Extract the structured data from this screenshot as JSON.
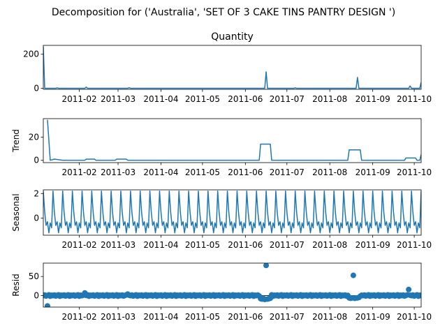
{
  "figure_title": "Decomposition for ('Australia', 'SET OF 3 CAKE TINS PANTRY DESIGN ')",
  "colors": {
    "line": "#1f77b4",
    "axis": "#000000",
    "background": "#ffffff"
  },
  "chart_data": [
    {
      "type": "line",
      "title": "Quantity",
      "ylabel": "",
      "ylim": [
        -6,
        252
      ],
      "yticks": [
        0,
        200
      ],
      "xlim": [
        0,
        273
      ],
      "xticks": [
        {
          "x": 26,
          "label": "2011-02"
        },
        {
          "x": 54,
          "label": "2011-03"
        },
        {
          "x": 85,
          "label": "2011-04"
        },
        {
          "x": 115,
          "label": "2011-05"
        },
        {
          "x": 146,
          "label": "2011-06"
        },
        {
          "x": 176,
          "label": "2011-07"
        },
        {
          "x": 207,
          "label": "2011-08"
        },
        {
          "x": 238,
          "label": "2011-09"
        },
        {
          "x": 268,
          "label": "2011-10"
        }
      ],
      "series": [
        {
          "name": "Quantity",
          "x": [
            0,
            1,
            2,
            9,
            10,
            11,
            30,
            31,
            32,
            61,
            62,
            63,
            160,
            161,
            162,
            181,
            182,
            183,
            226,
            227,
            228,
            264,
            265,
            266,
            271,
            272,
            273
          ],
          "values": [
            245,
            0,
            0,
            0,
            3,
            0,
            0,
            7,
            0,
            0,
            4,
            0,
            0,
            97,
            0,
            0,
            3,
            0,
            0,
            64,
            0,
            0,
            14,
            0,
            0,
            0,
            35
          ]
        }
      ]
    },
    {
      "type": "line",
      "title": "",
      "ylabel": "Trend",
      "ylim": [
        -2,
        36
      ],
      "yticks": [
        0,
        20
      ],
      "xlim": [
        0,
        273
      ],
      "xticks": [
        {
          "x": 26,
          "label": "2011-02"
        },
        {
          "x": 54,
          "label": "2011-03"
        },
        {
          "x": 85,
          "label": "2011-04"
        },
        {
          "x": 115,
          "label": "2011-05"
        },
        {
          "x": 146,
          "label": "2011-06"
        },
        {
          "x": 176,
          "label": "2011-07"
        },
        {
          "x": 207,
          "label": "2011-08"
        },
        {
          "x": 238,
          "label": "2011-09"
        },
        {
          "x": 268,
          "label": "2011-10"
        }
      ],
      "series": [
        {
          "name": "Trend",
          "x": [
            3,
            5,
            8,
            14,
            30,
            31,
            37,
            38,
            52,
            53,
            60,
            61,
            156,
            157,
            164,
            165,
            220,
            221,
            229,
            230,
            261,
            262,
            269,
            270,
            272,
            273
          ],
          "values": [
            35,
            0,
            1,
            0,
            0,
            1,
            1,
            0,
            0,
            1,
            1,
            0,
            0,
            14,
            14,
            0,
            0,
            9,
            9,
            0,
            0,
            2,
            2,
            0,
            0,
            5
          ]
        }
      ]
    },
    {
      "type": "line",
      "title": "",
      "ylabel": "Seasonal",
      "ylim": [
        -1.4,
        2.3
      ],
      "yticks": [
        0,
        2
      ],
      "xlim": [
        0,
        273
      ],
      "xticks": [
        {
          "x": 26,
          "label": "2011-02"
        },
        {
          "x": 54,
          "label": "2011-03"
        },
        {
          "x": 85,
          "label": "2011-04"
        },
        {
          "x": 115,
          "label": "2011-05"
        },
        {
          "x": 146,
          "label": "2011-06"
        },
        {
          "x": 176,
          "label": "2011-07"
        },
        {
          "x": 207,
          "label": "2011-08"
        },
        {
          "x": 238,
          "label": "2011-09"
        },
        {
          "x": 268,
          "label": "2011-10"
        }
      ],
      "seasonal_period": 7,
      "series": [
        {
          "name": "Seasonal",
          "pattern": [
            2.2,
            0.5,
            -0.6,
            -0.3,
            -1.2,
            -0.4,
            -0.8
          ]
        }
      ]
    },
    {
      "type": "scatter",
      "title": "",
      "ylabel": "Resid",
      "ylim": [
        -30,
        85
      ],
      "yticks": [
        0,
        50
      ],
      "xlim": [
        0,
        273
      ],
      "zero_line": true,
      "xticks": [
        {
          "x": 26,
          "label": "2011-02"
        },
        {
          "x": 54,
          "label": "2011-03"
        },
        {
          "x": 85,
          "label": "2011-04"
        },
        {
          "x": 115,
          "label": "2011-05"
        },
        {
          "x": 146,
          "label": "2011-06"
        },
        {
          "x": 176,
          "label": "2011-07"
        },
        {
          "x": 207,
          "label": "2011-08"
        },
        {
          "x": 238,
          "label": "2011-09"
        },
        {
          "x": 268,
          "label": "2011-10"
        }
      ],
      "series": [
        {
          "name": "Resid",
          "baseline_values": [
            0,
            1.5,
            -1,
            0.5,
            2,
            -1.5,
            1
          ],
          "outliers": [
            {
              "x": 3,
              "value": -27
            },
            {
              "x": 30,
              "value": 7
            },
            {
              "x": 61,
              "value": 4
            },
            {
              "x": 157,
              "value": -8
            },
            {
              "x": 158,
              "value": -9
            },
            {
              "x": 159,
              "value": -7
            },
            {
              "x": 160,
              "value": -10
            },
            {
              "x": 161,
              "value": 79
            },
            {
              "x": 162,
              "value": -9
            },
            {
              "x": 163,
              "value": -8
            },
            {
              "x": 164,
              "value": -7
            },
            {
              "x": 221,
              "value": -6
            },
            {
              "x": 222,
              "value": -7
            },
            {
              "x": 223,
              "value": -6
            },
            {
              "x": 224,
              "value": 53
            },
            {
              "x": 225,
              "value": -7
            },
            {
              "x": 226,
              "value": -6
            },
            {
              "x": 227,
              "value": -6
            },
            {
              "x": 228,
              "value": -5
            },
            {
              "x": 264,
              "value": 16
            }
          ]
        }
      ]
    }
  ]
}
